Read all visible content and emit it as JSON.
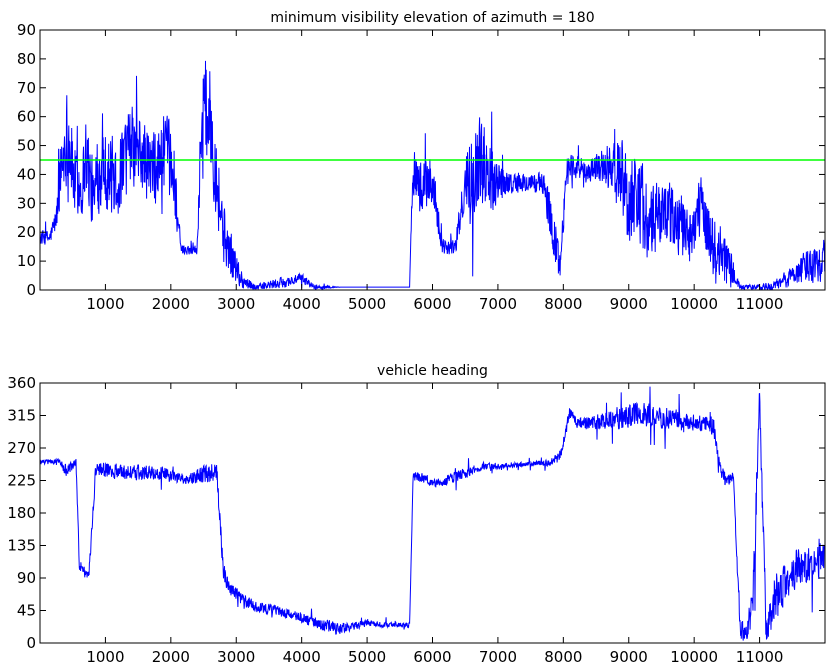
{
  "chart_data": [
    {
      "type": "line",
      "title": "minimum visibility elevation of azimuth = 180",
      "xlabel": "",
      "ylabel": "",
      "xlim": [
        0,
        12000
      ],
      "ylim": [
        0,
        90
      ],
      "xticks": [
        1000,
        2000,
        3000,
        4000,
        5000,
        6000,
        7000,
        8000,
        9000,
        10000,
        11000
      ],
      "yticks": [
        0,
        10,
        20,
        30,
        40,
        50,
        60,
        70,
        80,
        90
      ],
      "grid": false,
      "series": [
        {
          "color": "#0000ff",
          "style": "noisy-line",
          "x": [
            0,
            150,
            250,
            320,
            420,
            520,
            640,
            700,
            820,
            950,
            1050,
            1200,
            1380,
            1600,
            1750,
            1900,
            2050,
            2150,
            2400,
            2480,
            2600,
            2700,
            2800,
            2950,
            3100,
            3300,
            3600,
            4000,
            4200,
            4600,
            5000,
            5400,
            5650,
            5700,
            5800,
            6000,
            6150,
            6350,
            6520,
            6650,
            6750,
            6900,
            7000,
            7200,
            7500,
            7700,
            7800,
            7950,
            8050,
            8200,
            8300,
            8500,
            8700,
            8900,
            9000,
            9150,
            9300,
            9500,
            9700,
            9900,
            10100,
            10300,
            10500,
            10700,
            10800,
            11000,
            11200,
            11500,
            11700,
            11850,
            12000
          ],
          "y": [
            18,
            18,
            25,
            42,
            55,
            38,
            35,
            48,
            30,
            45,
            40,
            38,
            50,
            45,
            40,
            48,
            40,
            14,
            14,
            65,
            60,
            40,
            20,
            10,
            3,
            1,
            2,
            4,
            1,
            1,
            1,
            1,
            1,
            45,
            35,
            38,
            15,
            15,
            38,
            42,
            45,
            40,
            38,
            37,
            37,
            37,
            25,
            8,
            43,
            43,
            40,
            43,
            42,
            40,
            30,
            35,
            20,
            28,
            25,
            18,
            28,
            15,
            10,
            1,
            1,
            1,
            1,
            5,
            8,
            10,
            10
          ],
          "variation": [
            3,
            3,
            5,
            15,
            18,
            15,
            12,
            15,
            14,
            15,
            16,
            15,
            16,
            15,
            15,
            16,
            15,
            2,
            2,
            20,
            20,
            18,
            12,
            8,
            3,
            1,
            2,
            2,
            1,
            0,
            0,
            0,
            0,
            12,
            10,
            10,
            3,
            3,
            12,
            16,
            18,
            15,
            8,
            4,
            4,
            4,
            10,
            8,
            4,
            5,
            6,
            5,
            10,
            15,
            18,
            18,
            16,
            12,
            12,
            12,
            12,
            12,
            10,
            1,
            1,
            1,
            2,
            4,
            6,
            8,
            8
          ]
        },
        {
          "color": "#00ff00",
          "style": "threshold",
          "x": [
            0,
            12000
          ],
          "y": [
            45,
            45
          ]
        }
      ]
    },
    {
      "type": "line",
      "title": "vehicle heading",
      "xlabel": "",
      "ylabel": "",
      "xlim": [
        0,
        12000
      ],
      "ylim": [
        0,
        360
      ],
      "xticks": [
        1000,
        2000,
        3000,
        4000,
        5000,
        6000,
        7000,
        8000,
        9000,
        10000,
        11000
      ],
      "yticks": [
        0,
        45,
        90,
        135,
        180,
        225,
        270,
        315,
        360
      ],
      "grid": false,
      "series": [
        {
          "color": "#0000ff",
          "style": "noisy-line",
          "x": [
            0,
            300,
            400,
            550,
            600,
            700,
            750,
            850,
            950,
            1200,
            1500,
            1800,
            2000,
            2100,
            2400,
            2600,
            2700,
            2800,
            2900,
            3100,
            3300,
            3600,
            4000,
            4300,
            4500,
            4700,
            5000,
            5300,
            5650,
            5700,
            5900,
            6000,
            6200,
            6500,
            6800,
            7000,
            7200,
            7500,
            7800,
            7950,
            8100,
            8200,
            8500,
            8700,
            9000,
            9300,
            9700,
            10000,
            10300,
            10400,
            10500,
            10600,
            10700,
            10800,
            10900,
            11000,
            11100,
            11200,
            11500,
            11800,
            12000
          ],
          "y": [
            250,
            252,
            238,
            250,
            110,
            95,
            100,
            240,
            240,
            238,
            236,
            237,
            230,
            228,
            230,
            235,
            240,
            100,
            75,
            60,
            50,
            45,
            35,
            25,
            20,
            22,
            28,
            25,
            25,
            230,
            228,
            220,
            225,
            235,
            245,
            245,
            246,
            248,
            250,
            260,
            320,
            305,
            305,
            310,
            315,
            315,
            310,
            305,
            300,
            240,
            225,
            230,
            20,
            15,
            60,
            340,
            10,
            60,
            100,
            110,
            120
          ],
          "variation": [
            4,
            4,
            10,
            6,
            10,
            8,
            10,
            12,
            12,
            12,
            12,
            12,
            10,
            8,
            12,
            16,
            14,
            15,
            10,
            10,
            8,
            8,
            8,
            10,
            10,
            8,
            5,
            4,
            4,
            10,
            8,
            6,
            8,
            8,
            6,
            4,
            4,
            4,
            6,
            10,
            10,
            8,
            12,
            15,
            20,
            18,
            15,
            12,
            15,
            12,
            8,
            8,
            15,
            15,
            40,
            30,
            30,
            35,
            30,
            30,
            25
          ]
        }
      ]
    }
  ]
}
